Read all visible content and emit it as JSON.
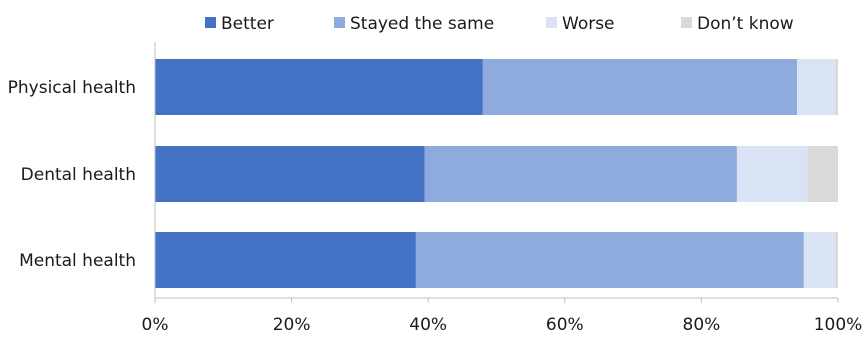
{
  "chart_data": {
    "type": "bar",
    "orientation": "horizontal",
    "stacked": true,
    "title": "",
    "xlabel": "",
    "ylabel": "",
    "categories": [
      "Physical health",
      "Dental health",
      "Mental health"
    ],
    "series": [
      {
        "name": "Better",
        "color": "#4472c4",
        "values": [
          48,
          39.5,
          38.2
        ]
      },
      {
        "name": "Stayed the same",
        "color": "#8faadc",
        "values": [
          46,
          45.7,
          56.8
        ]
      },
      {
        "name": "Worse",
        "color": "#dae3f3",
        "values": [
          5.6,
          10.3,
          4.6
        ]
      },
      {
        "name": "Don’t know",
        "color": "#d9d9d9",
        "values": [
          0.4,
          4.5,
          0.4
        ]
      }
    ],
    "xlim": [
      0,
      100
    ],
    "xticks": [
      0,
      20,
      40,
      60,
      80,
      100
    ],
    "xtick_labels": [
      "0%",
      "20%",
      "40%",
      "60%",
      "80%",
      "100%"
    ],
    "grid": false,
    "legend_position": "top"
  }
}
